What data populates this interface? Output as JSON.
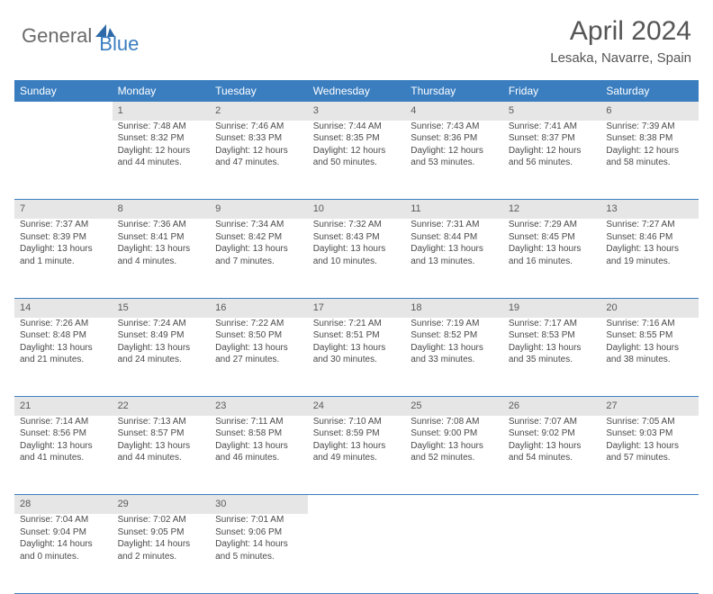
{
  "brand": {
    "part1": "General",
    "part2": "Blue"
  },
  "title": "April 2024",
  "location": "Lesaka, Navarre, Spain",
  "colors": {
    "header_bg": "#3a7ec0",
    "header_text": "#ffffff",
    "daynum_bg": "#e6e6e6",
    "text": "#4a4a4a",
    "brand_gray": "#6a6a6a",
    "brand_blue": "#3a7ec0"
  },
  "day_labels": [
    "Sunday",
    "Monday",
    "Tuesday",
    "Wednesday",
    "Thursday",
    "Friday",
    "Saturday"
  ],
  "weeks": [
    {
      "nums": [
        "",
        "1",
        "2",
        "3",
        "4",
        "5",
        "6"
      ],
      "cells": [
        {
          "sunrise": "",
          "sunset": "",
          "daylight": ""
        },
        {
          "sunrise": "Sunrise: 7:48 AM",
          "sunset": "Sunset: 8:32 PM",
          "daylight": "Daylight: 12 hours and 44 minutes."
        },
        {
          "sunrise": "Sunrise: 7:46 AM",
          "sunset": "Sunset: 8:33 PM",
          "daylight": "Daylight: 12 hours and 47 minutes."
        },
        {
          "sunrise": "Sunrise: 7:44 AM",
          "sunset": "Sunset: 8:35 PM",
          "daylight": "Daylight: 12 hours and 50 minutes."
        },
        {
          "sunrise": "Sunrise: 7:43 AM",
          "sunset": "Sunset: 8:36 PM",
          "daylight": "Daylight: 12 hours and 53 minutes."
        },
        {
          "sunrise": "Sunrise: 7:41 AM",
          "sunset": "Sunset: 8:37 PM",
          "daylight": "Daylight: 12 hours and 56 minutes."
        },
        {
          "sunrise": "Sunrise: 7:39 AM",
          "sunset": "Sunset: 8:38 PM",
          "daylight": "Daylight: 12 hours and 58 minutes."
        }
      ]
    },
    {
      "nums": [
        "7",
        "8",
        "9",
        "10",
        "11",
        "12",
        "13"
      ],
      "cells": [
        {
          "sunrise": "Sunrise: 7:37 AM",
          "sunset": "Sunset: 8:39 PM",
          "daylight": "Daylight: 13 hours and 1 minute."
        },
        {
          "sunrise": "Sunrise: 7:36 AM",
          "sunset": "Sunset: 8:41 PM",
          "daylight": "Daylight: 13 hours and 4 minutes."
        },
        {
          "sunrise": "Sunrise: 7:34 AM",
          "sunset": "Sunset: 8:42 PM",
          "daylight": "Daylight: 13 hours and 7 minutes."
        },
        {
          "sunrise": "Sunrise: 7:32 AM",
          "sunset": "Sunset: 8:43 PM",
          "daylight": "Daylight: 13 hours and 10 minutes."
        },
        {
          "sunrise": "Sunrise: 7:31 AM",
          "sunset": "Sunset: 8:44 PM",
          "daylight": "Daylight: 13 hours and 13 minutes."
        },
        {
          "sunrise": "Sunrise: 7:29 AM",
          "sunset": "Sunset: 8:45 PM",
          "daylight": "Daylight: 13 hours and 16 minutes."
        },
        {
          "sunrise": "Sunrise: 7:27 AM",
          "sunset": "Sunset: 8:46 PM",
          "daylight": "Daylight: 13 hours and 19 minutes."
        }
      ]
    },
    {
      "nums": [
        "14",
        "15",
        "16",
        "17",
        "18",
        "19",
        "20"
      ],
      "cells": [
        {
          "sunrise": "Sunrise: 7:26 AM",
          "sunset": "Sunset: 8:48 PM",
          "daylight": "Daylight: 13 hours and 21 minutes."
        },
        {
          "sunrise": "Sunrise: 7:24 AM",
          "sunset": "Sunset: 8:49 PM",
          "daylight": "Daylight: 13 hours and 24 minutes."
        },
        {
          "sunrise": "Sunrise: 7:22 AM",
          "sunset": "Sunset: 8:50 PM",
          "daylight": "Daylight: 13 hours and 27 minutes."
        },
        {
          "sunrise": "Sunrise: 7:21 AM",
          "sunset": "Sunset: 8:51 PM",
          "daylight": "Daylight: 13 hours and 30 minutes."
        },
        {
          "sunrise": "Sunrise: 7:19 AM",
          "sunset": "Sunset: 8:52 PM",
          "daylight": "Daylight: 13 hours and 33 minutes."
        },
        {
          "sunrise": "Sunrise: 7:17 AM",
          "sunset": "Sunset: 8:53 PM",
          "daylight": "Daylight: 13 hours and 35 minutes."
        },
        {
          "sunrise": "Sunrise: 7:16 AM",
          "sunset": "Sunset: 8:55 PM",
          "daylight": "Daylight: 13 hours and 38 minutes."
        }
      ]
    },
    {
      "nums": [
        "21",
        "22",
        "23",
        "24",
        "25",
        "26",
        "27"
      ],
      "cells": [
        {
          "sunrise": "Sunrise: 7:14 AM",
          "sunset": "Sunset: 8:56 PM",
          "daylight": "Daylight: 13 hours and 41 minutes."
        },
        {
          "sunrise": "Sunrise: 7:13 AM",
          "sunset": "Sunset: 8:57 PM",
          "daylight": "Daylight: 13 hours and 44 minutes."
        },
        {
          "sunrise": "Sunrise: 7:11 AM",
          "sunset": "Sunset: 8:58 PM",
          "daylight": "Daylight: 13 hours and 46 minutes."
        },
        {
          "sunrise": "Sunrise: 7:10 AM",
          "sunset": "Sunset: 8:59 PM",
          "daylight": "Daylight: 13 hours and 49 minutes."
        },
        {
          "sunrise": "Sunrise: 7:08 AM",
          "sunset": "Sunset: 9:00 PM",
          "daylight": "Daylight: 13 hours and 52 minutes."
        },
        {
          "sunrise": "Sunrise: 7:07 AM",
          "sunset": "Sunset: 9:02 PM",
          "daylight": "Daylight: 13 hours and 54 minutes."
        },
        {
          "sunrise": "Sunrise: 7:05 AM",
          "sunset": "Sunset: 9:03 PM",
          "daylight": "Daylight: 13 hours and 57 minutes."
        }
      ]
    },
    {
      "nums": [
        "28",
        "29",
        "30",
        "",
        "",
        "",
        ""
      ],
      "cells": [
        {
          "sunrise": "Sunrise: 7:04 AM",
          "sunset": "Sunset: 9:04 PM",
          "daylight": "Daylight: 14 hours and 0 minutes."
        },
        {
          "sunrise": "Sunrise: 7:02 AM",
          "sunset": "Sunset: 9:05 PM",
          "daylight": "Daylight: 14 hours and 2 minutes."
        },
        {
          "sunrise": "Sunrise: 7:01 AM",
          "sunset": "Sunset: 9:06 PM",
          "daylight": "Daylight: 14 hours and 5 minutes."
        },
        {
          "sunrise": "",
          "sunset": "",
          "daylight": ""
        },
        {
          "sunrise": "",
          "sunset": "",
          "daylight": ""
        },
        {
          "sunrise": "",
          "sunset": "",
          "daylight": ""
        },
        {
          "sunrise": "",
          "sunset": "",
          "daylight": ""
        }
      ]
    }
  ]
}
